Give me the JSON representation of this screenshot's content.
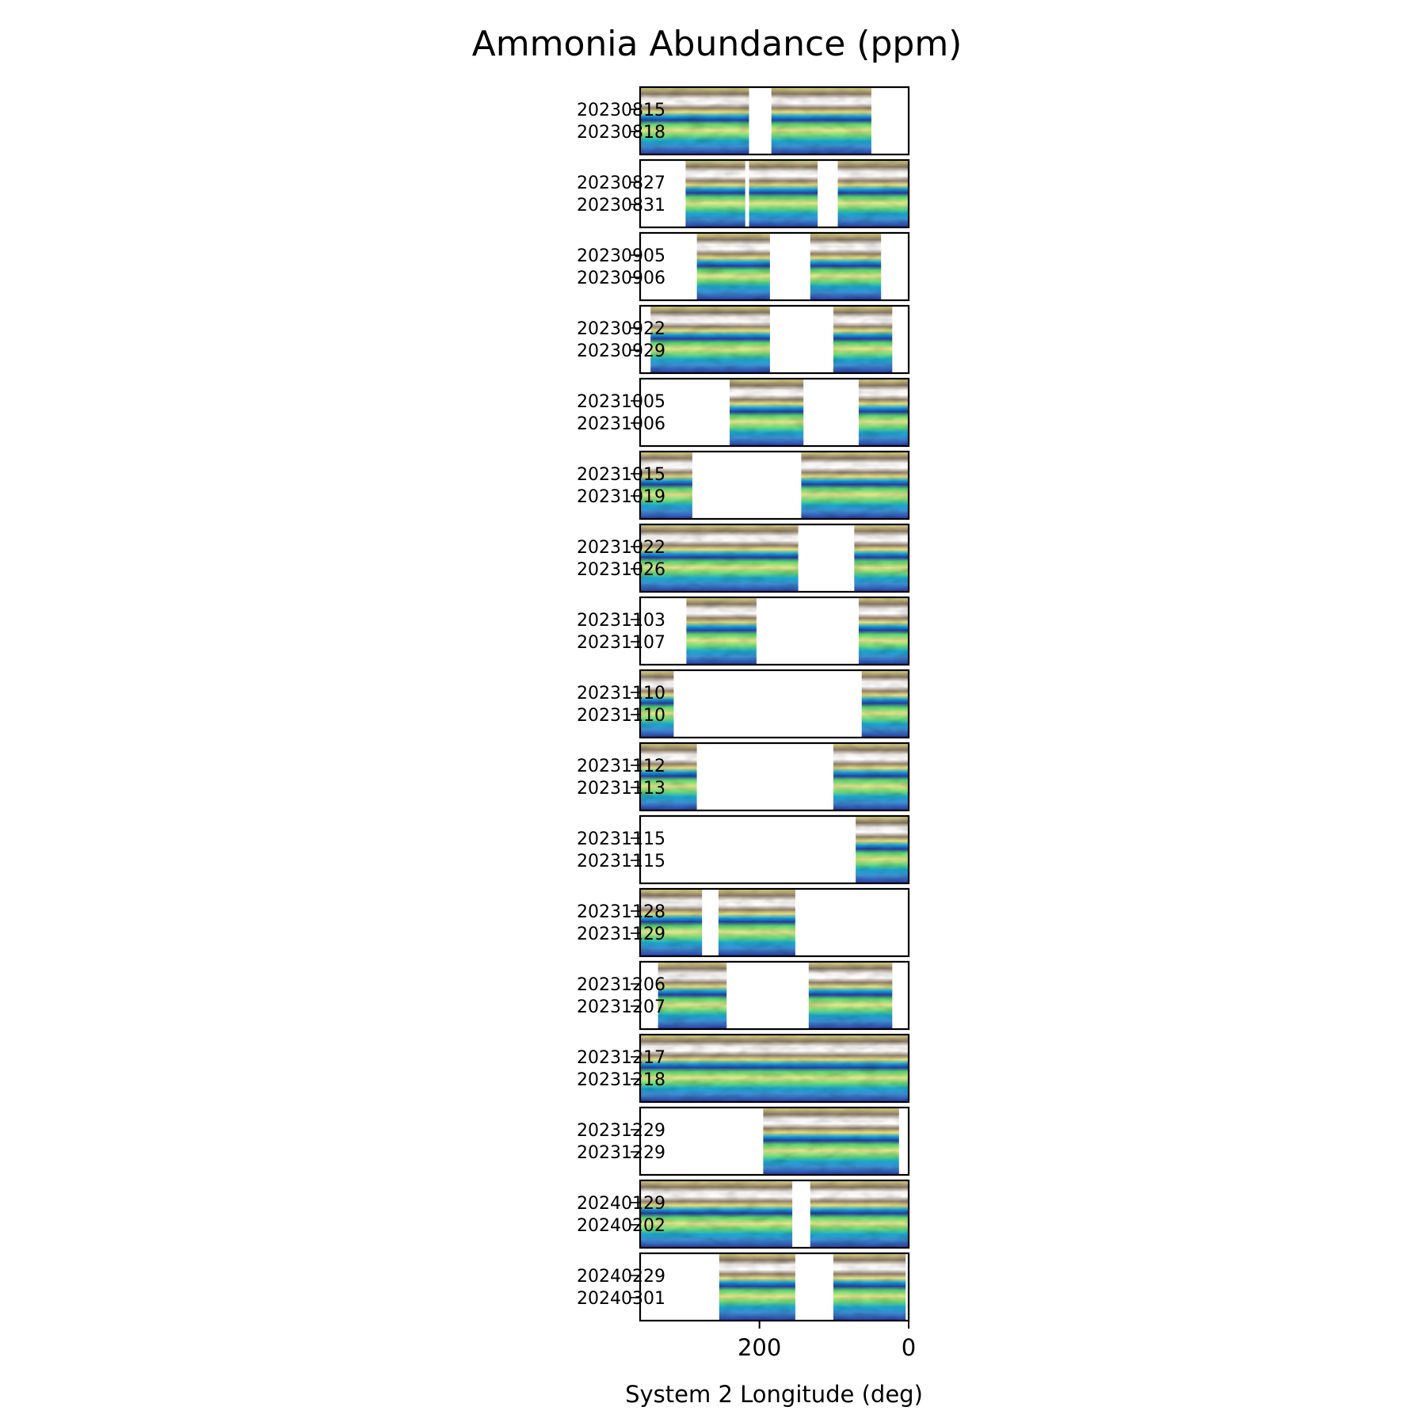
{
  "chart_data": {
    "type": "heatmap",
    "title": "Ammonia Abundance (ppm)",
    "xlabel": "System 2 Longitude (deg)",
    "xlim": [
      360,
      0
    ],
    "xticks": [
      200,
      0
    ],
    "xtick_labels": [
      "200",
      "0"
    ],
    "colormap": "terrain",
    "colors": {
      "high": "#ffffff",
      "upper": "#8c7561",
      "mid": "#e9e38a",
      "lowmid": "#54d96b",
      "low_cyan": "#0c9ed9",
      "lowest": "#2b3aa4"
    },
    "panels": [
      {
        "dates": [
          "20230815",
          "20230818"
        ],
        "coverage": [
          [
            360,
            214
          ],
          [
            184,
            50
          ]
        ]
      },
      {
        "dates": [
          "20230827",
          "20230831"
        ],
        "coverage": [
          [
            299,
            219
          ],
          [
            214,
            122
          ],
          [
            95,
            0
          ]
        ]
      },
      {
        "dates": [
          "20230905",
          "20230906"
        ],
        "coverage": [
          [
            284,
            186
          ],
          [
            132,
            37
          ]
        ]
      },
      {
        "dates": [
          "20230922",
          "20230929"
        ],
        "coverage": [
          [
            346,
            186
          ],
          [
            101,
            22
          ]
        ]
      },
      {
        "dates": [
          "20231005",
          "20231006"
        ],
        "coverage": [
          [
            240,
            141
          ],
          [
            67,
            0
          ]
        ]
      },
      {
        "dates": [
          "20231015",
          "20231019"
        ],
        "coverage": [
          [
            360,
            290
          ],
          [
            144,
            0
          ]
        ]
      },
      {
        "dates": [
          "20231022",
          "20231026"
        ],
        "coverage": [
          [
            360,
            148
          ],
          [
            73,
            0
          ]
        ]
      },
      {
        "dates": [
          "20231103",
          "20231107"
        ],
        "coverage": [
          [
            298,
            204
          ],
          [
            67,
            0
          ]
        ]
      },
      {
        "dates": [
          "20231110",
          "20231110"
        ],
        "coverage": [
          [
            360,
            315
          ],
          [
            63,
            0
          ]
        ]
      },
      {
        "dates": [
          "20231112",
          "20231113"
        ],
        "coverage": [
          [
            360,
            284
          ],
          [
            101,
            0
          ]
        ]
      },
      {
        "dates": [
          "20231115",
          "20231115"
        ],
        "coverage": [
          [
            71,
            0
          ]
        ]
      },
      {
        "dates": [
          "20231128",
          "20231129"
        ],
        "coverage": [
          [
            360,
            277
          ],
          [
            255,
            152
          ]
        ]
      },
      {
        "dates": [
          "20231206",
          "20231207"
        ],
        "coverage": [
          [
            336,
            244
          ],
          [
            134,
            22
          ]
        ]
      },
      {
        "dates": [
          "20231217",
          "20231218"
        ],
        "coverage": [
          [
            360,
            0
          ]
        ]
      },
      {
        "dates": [
          "20231229",
          "20231229"
        ],
        "coverage": [
          [
            195,
            13
          ]
        ]
      },
      {
        "dates": [
          "20240129",
          "20240202"
        ],
        "coverage": [
          [
            360,
            156
          ],
          [
            132,
            0
          ]
        ]
      },
      {
        "dates": [
          "20240229",
          "20240301"
        ],
        "coverage": [
          [
            254,
            152
          ],
          [
            101,
            4
          ]
        ]
      }
    ]
  }
}
